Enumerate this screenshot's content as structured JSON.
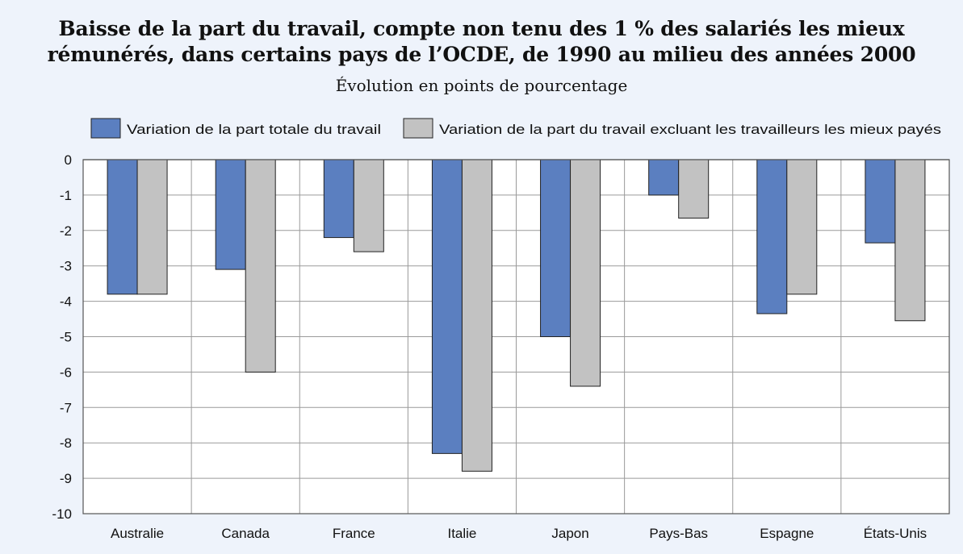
{
  "title_line1": "Baisse de la part du travail, compte non tenu des 1 % des salariés les mieux",
  "title_line2": "rémunérés, dans certains pays de l’OCDE, de 1990 au milieu des années 2000",
  "subtitle": "Évolution en points de pourcentage",
  "colors": {
    "series1": "#5b7fc0",
    "series2": "#c2c2c2",
    "plot_bg": "#ffffff",
    "grid": "#9a9a9a"
  },
  "chart_data": {
    "type": "bar",
    "title": "Baisse de la part du travail, compte non tenu des 1 % des salariés les mieux rémunérés, dans certains pays de l’OCDE, de 1990 au milieu des années 2000",
    "subtitle": "Évolution en points de pourcentage",
    "xlabel": "",
    "ylabel": "",
    "ylim": [
      -10,
      0
    ],
    "yticks": [
      "0",
      "-1",
      "-2",
      "-3",
      "-4",
      "-5",
      "-6",
      "-7",
      "-8",
      "-9",
      "-10"
    ],
    "grid": true,
    "legend_position": "top",
    "categories": [
      "Australie",
      "Canada",
      "France",
      "Italie",
      "Japon",
      "Pays-Bas",
      "Espagne",
      "États-Unis"
    ],
    "series": [
      {
        "name": "Variation de la part totale du travail",
        "values": [
          -3.8,
          -3.1,
          -2.2,
          -8.3,
          -5.0,
          -1.0,
          -4.35,
          -2.35
        ]
      },
      {
        "name": "Variation de la part du travail excluant les travailleurs les mieux payés",
        "values": [
          -3.8,
          -6.0,
          -2.6,
          -8.8,
          -6.4,
          -1.65,
          -3.8,
          -4.55
        ]
      }
    ]
  }
}
